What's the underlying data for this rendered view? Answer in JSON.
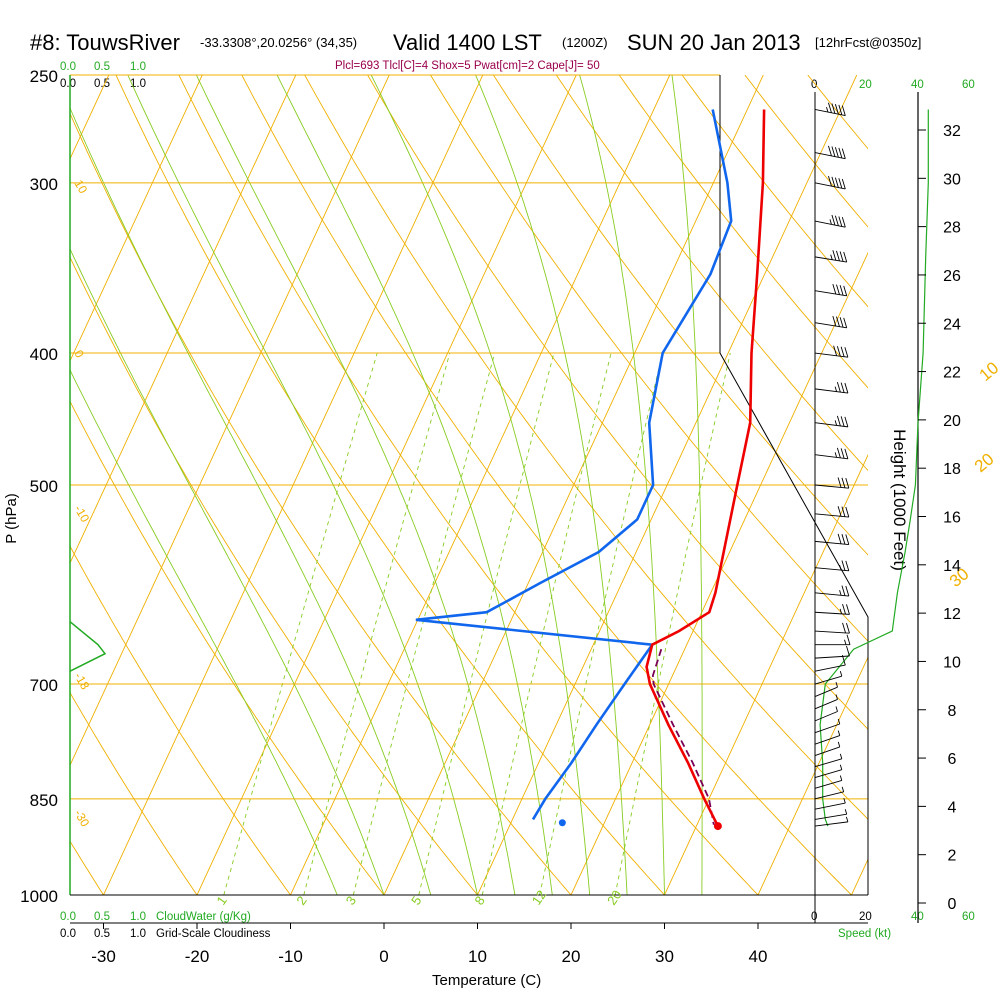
{
  "header": {
    "station": "#8: TouwsRiver",
    "coords": "-33.3308°,20.0256° (34,35)",
    "valid": "Valid 1400 LST",
    "zulu": "(1200Z)",
    "date": "SUN 20 Jan 2013",
    "forecast": "[12hrFcst@0350z]",
    "stats": "Plcl=693 Tlcl[C]=4 Shox=5 Pwat[cm]=2 Cape[J]= 50"
  },
  "labels": {
    "cloudwater": "CloudWater (g/Kg)",
    "cloudiness": "Grid-Scale Cloudiness",
    "speed": "Speed (kt)",
    "height": "Height (1000 Feet)",
    "pressure": "P (hPa)",
    "temperature": "Temperature (C)",
    "cw_top_green": [
      "0.0",
      "0.5",
      "1.0"
    ],
    "cw_top_black": [
      "0.0",
      "0.5",
      "1.0"
    ],
    "cw_bottom_green": [
      "0.0",
      "0.5",
      "1.0"
    ],
    "cw_bottom_black": [
      "0.0",
      "0.5",
      "1.0"
    ],
    "speed_top_black": [
      "0"
    ],
    "speed_top_green": [
      "20",
      "40",
      "60"
    ],
    "speed_bottom_black": [
      "0",
      "20"
    ],
    "speed_bottom_green": [
      "40",
      "60"
    ]
  },
  "colors": {
    "isotherm": "#f0b000",
    "mixing_ratio": "#88cc22",
    "temperature": "#ee0000",
    "dewpoint": "#1166ee",
    "parcel": "#7a0055",
    "cloud": "#22aa22",
    "wind": "#000000"
  },
  "chart_data": {
    "type": "skew-t",
    "title": "#8: TouwsRiver",
    "xlabel": "Temperature (C)",
    "ylabel": "P (hPa)",
    "y2label": "Height (1000 Feet)",
    "pressure_ticks": [
      250,
      300,
      400,
      500,
      700,
      850,
      1000
    ],
    "temp_ticks": [
      -30,
      -20,
      -10,
      0,
      10,
      20,
      30,
      40
    ],
    "height_ticks": [
      0,
      2,
      4,
      6,
      8,
      10,
      12,
      14,
      16,
      18,
      20,
      22,
      24,
      26,
      28,
      30,
      32
    ],
    "isotherm_labels": [
      {
        "text": "10",
        "p": 300,
        "t": -33
      },
      {
        "text": "0",
        "p": 400,
        "t": -33
      },
      {
        "text": "-10",
        "p": 520,
        "t": -33
      },
      {
        "text": "-18",
        "p": 690,
        "t": -33
      },
      {
        "text": "-30",
        "p": 870,
        "t": -33
      },
      {
        "text": "0",
        "p": 340,
        "t": 36
      },
      {
        "text": "10",
        "p": 420,
        "t": 40
      },
      {
        "text": "20",
        "p": 490,
        "t": 44
      },
      {
        "text": "30",
        "p": 595,
        "t": 47
      }
    ],
    "mixing_ratio_labels": [
      "1",
      "2",
      "3",
      "5",
      "8",
      "12",
      "20"
    ],
    "temperature_profile": [
      {
        "p": 265,
        "t": 1.8
      },
      {
        "p": 300,
        "t": 5.3
      },
      {
        "p": 350,
        "t": 9.2
      },
      {
        "p": 400,
        "t": 12.5
      },
      {
        "p": 450,
        "t": 15.8
      },
      {
        "p": 500,
        "t": 17.5
      },
      {
        "p": 600,
        "t": 20.5
      },
      {
        "p": 620,
        "t": 20.8
      },
      {
        "p": 640,
        "t": 18.5
      },
      {
        "p": 655,
        "t": 16.3
      },
      {
        "p": 680,
        "t": 16.8
      },
      {
        "p": 700,
        "t": 18.0
      },
      {
        "p": 750,
        "t": 22.0
      },
      {
        "p": 800,
        "t": 26.0
      },
      {
        "p": 850,
        "t": 29.5
      },
      {
        "p": 890,
        "t": 32.3
      }
    ],
    "dewpoint_profile": [
      {
        "p": 265,
        "t": -3.7
      },
      {
        "p": 300,
        "t": 1.5
      },
      {
        "p": 320,
        "t": 3.8
      },
      {
        "p": 350,
        "t": 4.2
      },
      {
        "p": 400,
        "t": 3.0
      },
      {
        "p": 450,
        "t": 5.0
      },
      {
        "p": 500,
        "t": 8.5
      },
      {
        "p": 530,
        "t": 8.5
      },
      {
        "p": 560,
        "t": 6.0
      },
      {
        "p": 590,
        "t": 1.3
      },
      {
        "p": 620,
        "t": -3.0
      },
      {
        "p": 628,
        "t": -10.2
      },
      {
        "p": 655,
        "t": 16.3
      },
      {
        "p": 700,
        "t": 15.3
      },
      {
        "p": 750,
        "t": 14.3
      },
      {
        "p": 800,
        "t": 13.5
      },
      {
        "p": 850,
        "t": 12.5
      },
      {
        "p": 880,
        "t": 12.2
      }
    ],
    "parcel_profile": [
      {
        "p": 660,
        "t": 17.5
      },
      {
        "p": 690,
        "t": 17.9
      },
      {
        "p": 700,
        "t": 18.4
      },
      {
        "p": 750,
        "t": 22.5
      },
      {
        "p": 800,
        "t": 26.5
      },
      {
        "p": 850,
        "t": 30.0
      },
      {
        "p": 888,
        "t": 31.8
      }
    ],
    "surface_temperature": {
      "p": 890,
      "t": 32.3
    },
    "surface_dewpoint": {
      "p": 885,
      "t": 15.5
    },
    "wind_speed_kt": [
      {
        "p": 265,
        "s": 44
      },
      {
        "p": 300,
        "s": 44
      },
      {
        "p": 340,
        "s": 43
      },
      {
        "p": 400,
        "s": 42
      },
      {
        "p": 450,
        "s": 40
      },
      {
        "p": 500,
        "s": 39
      },
      {
        "p": 530,
        "s": 37
      },
      {
        "p": 560,
        "s": 35
      },
      {
        "p": 600,
        "s": 32
      },
      {
        "p": 640,
        "s": 30
      },
      {
        "p": 660,
        "s": 15
      },
      {
        "p": 700,
        "s": 4
      },
      {
        "p": 750,
        "s": 2
      },
      {
        "p": 800,
        "s": 3
      },
      {
        "p": 850,
        "s": 3
      },
      {
        "p": 880,
        "s": 4
      },
      {
        "p": 890,
        "s": 5
      }
    ],
    "cloud_water": [
      {
        "p": 630,
        "v": 0.0
      },
      {
        "p": 655,
        "v": 0.4
      },
      {
        "p": 665,
        "v": 0.5
      },
      {
        "p": 685,
        "v": 0.0
      }
    ],
    "wind_barbs": [
      {
        "p": 265,
        "dir": 300,
        "spd": 55
      },
      {
        "p": 285,
        "dir": 300,
        "spd": 50
      },
      {
        "p": 300,
        "dir": 300,
        "spd": 50
      },
      {
        "p": 320,
        "dir": 300,
        "spd": 45
      },
      {
        "p": 340,
        "dir": 295,
        "spd": 45
      },
      {
        "p": 360,
        "dir": 295,
        "spd": 40
      },
      {
        "p": 380,
        "dir": 295,
        "spd": 40
      },
      {
        "p": 400,
        "dir": 290,
        "spd": 40
      },
      {
        "p": 425,
        "dir": 290,
        "spd": 35
      },
      {
        "p": 450,
        "dir": 290,
        "spd": 35
      },
      {
        "p": 475,
        "dir": 290,
        "spd": 35
      },
      {
        "p": 500,
        "dir": 285,
        "spd": 30
      },
      {
        "p": 525,
        "dir": 285,
        "spd": 30
      },
      {
        "p": 550,
        "dir": 285,
        "spd": 30
      },
      {
        "p": 575,
        "dir": 285,
        "spd": 25
      },
      {
        "p": 600,
        "dir": 285,
        "spd": 25
      },
      {
        "p": 620,
        "dir": 280,
        "spd": 25
      },
      {
        "p": 640,
        "dir": 280,
        "spd": 20
      },
      {
        "p": 655,
        "dir": 270,
        "spd": 15
      },
      {
        "p": 670,
        "dir": 260,
        "spd": 10
      },
      {
        "p": 685,
        "dir": 240,
        "spd": 10
      },
      {
        "p": 700,
        "dir": 230,
        "spd": 5
      },
      {
        "p": 715,
        "dir": 220,
        "spd": 5
      },
      {
        "p": 730,
        "dir": 220,
        "spd": 5
      },
      {
        "p": 745,
        "dir": 220,
        "spd": 5
      },
      {
        "p": 760,
        "dir": 225,
        "spd": 5
      },
      {
        "p": 775,
        "dir": 225,
        "spd": 5
      },
      {
        "p": 790,
        "dir": 225,
        "spd": 5
      },
      {
        "p": 805,
        "dir": 230,
        "spd": 5
      },
      {
        "p": 820,
        "dir": 230,
        "spd": 5
      },
      {
        "p": 835,
        "dir": 230,
        "spd": 5
      },
      {
        "p": 850,
        "dir": 235,
        "spd": 5
      },
      {
        "p": 865,
        "dir": 240,
        "spd": 5
      },
      {
        "p": 880,
        "dir": 245,
        "spd": 5
      },
      {
        "p": 890,
        "dir": 250,
        "spd": 5
      }
    ]
  }
}
